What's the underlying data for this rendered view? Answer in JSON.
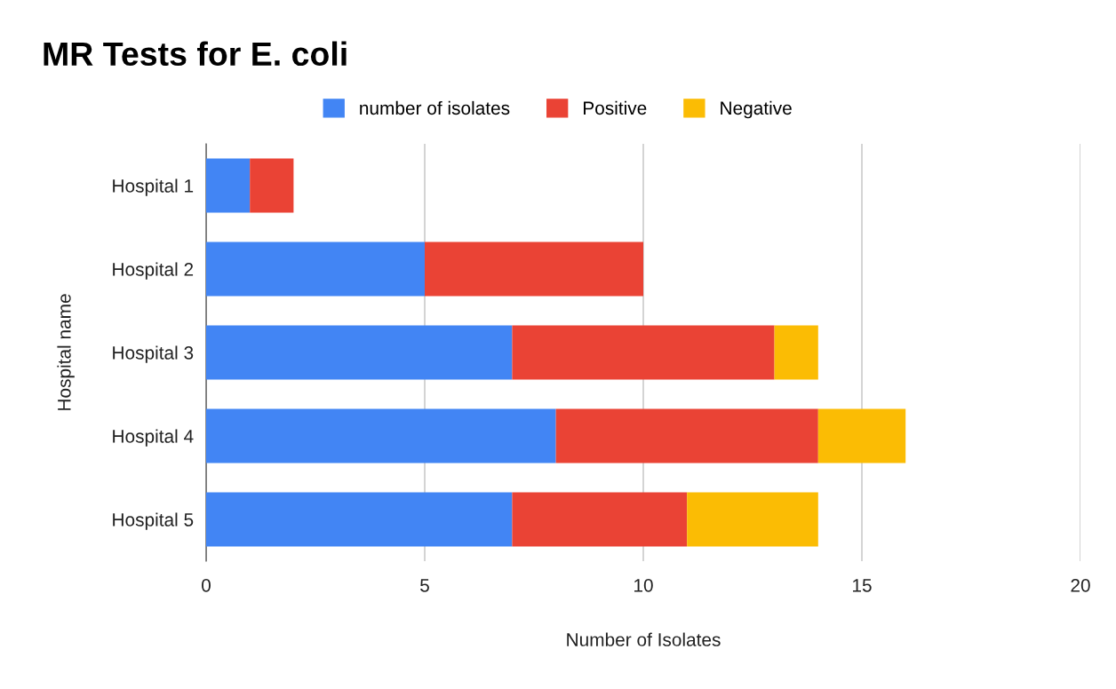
{
  "chart_data": {
    "type": "bar",
    "title": "MR Tests for E. coli",
    "xlabel": "Number of Isolates",
    "ylabel": "Hospital name",
    "orientation": "horizontal",
    "stacked": true,
    "categories": [
      "Hospital 1",
      "Hospital 2",
      "Hospital 3",
      "Hospital 4",
      "Hospital 5"
    ],
    "series": [
      {
        "name": "number of isolates",
        "color": "#4285f4",
        "values": [
          1,
          5,
          7,
          8,
          7
        ]
      },
      {
        "name": "Positive",
        "color": "#ea4335",
        "values": [
          1,
          5,
          6,
          6,
          4
        ]
      },
      {
        "name": "Negative",
        "color": "#fbbc04",
        "values": [
          0,
          0,
          1,
          2,
          3
        ]
      }
    ],
    "xlim": [
      0,
      20
    ],
    "xticks": [
      0,
      5,
      10,
      15,
      20
    ],
    "grid": "x",
    "legend": "top"
  }
}
